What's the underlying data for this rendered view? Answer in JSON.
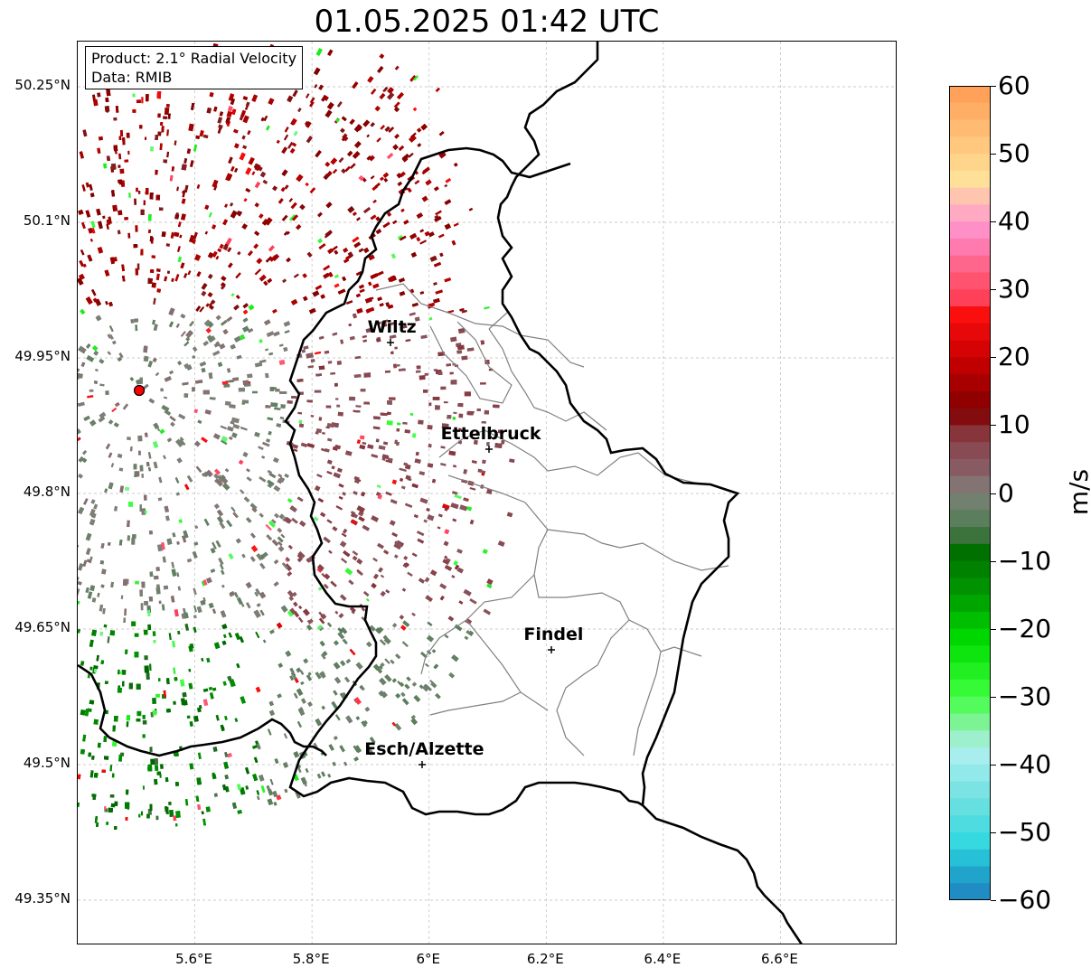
{
  "title": "01.05.2025 01:42 UTC",
  "info": {
    "product": "Product: 2.1° Radial Velocity",
    "data": "Data: RMIB"
  },
  "lat_labels": [
    "50.25°N",
    "50.1°N",
    "49.95°N",
    "49.8°N",
    "49.65°N",
    "49.5°N",
    "49.35°N"
  ],
  "lat_values": [
    50.25,
    50.1,
    49.95,
    49.8,
    49.65,
    49.5,
    49.35
  ],
  "lon_labels": [
    "5.6°E",
    "5.8°E",
    "6°E",
    "6.2°E",
    "6.4°E",
    "6.6°E"
  ],
  "lon_values": [
    5.6,
    5.8,
    6.0,
    6.2,
    6.4,
    6.6
  ],
  "extent": {
    "lon_min": 5.4,
    "lon_max": 6.8,
    "lat_min": 49.3,
    "lat_max": 50.3
  },
  "radar_site": {
    "lon": 5.505,
    "lat": 49.914
  },
  "cities": [
    {
      "name": "Wiltz",
      "lon": 5.935,
      "lat": 49.966
    },
    {
      "name": "Ettelbruck",
      "lon": 6.104,
      "lat": 49.848
    },
    {
      "name": "Findel",
      "lon": 6.211,
      "lat": 49.626
    },
    {
      "name": "Esch/Alzette",
      "lon": 5.99,
      "lat": 49.499
    }
  ],
  "colorbar": {
    "unit": "m/s",
    "ticks": [
      "60",
      "50",
      "40",
      "30",
      "20",
      "10",
      "0",
      "−10",
      "−20",
      "−30",
      "−40",
      "−50",
      "−60"
    ],
    "min": -60,
    "max": 60,
    "stops": [
      {
        "v": 60,
        "c": "#ff9a52"
      },
      {
        "v": 52,
        "c": "#ffc47a"
      },
      {
        "v": 46,
        "c": "#ffe199"
      },
      {
        "v": 42,
        "c": "#ffb0c0"
      },
      {
        "v": 38,
        "c": "#ff88c8"
      },
      {
        "v": 33,
        "c": "#ff6080"
      },
      {
        "v": 28,
        "c": "#ff3a52"
      },
      {
        "v": 27,
        "c": "#ff1010"
      },
      {
        "v": 20,
        "c": "#cc0000"
      },
      {
        "v": 12,
        "c": "#800000"
      },
      {
        "v": 8,
        "c": "#884048"
      },
      {
        "v": 3,
        "c": "#886068"
      },
      {
        "v": 0,
        "c": "#80807a"
      },
      {
        "v": -3,
        "c": "#5f8060"
      },
      {
        "v": -6,
        "c": "#507850"
      },
      {
        "v": -7,
        "c": "#006400"
      },
      {
        "v": -15,
        "c": "#009a00"
      },
      {
        "v": -22,
        "c": "#00dd00"
      },
      {
        "v": -30,
        "c": "#40ff40"
      },
      {
        "v": -35,
        "c": "#90f0b0"
      },
      {
        "v": -38,
        "c": "#b0f0f0"
      },
      {
        "v": -45,
        "c": "#70e0e0"
      },
      {
        "v": -52,
        "c": "#30d8e0"
      },
      {
        "v": -55,
        "c": "#20b0d0"
      },
      {
        "v": -60,
        "c": "#2080c0"
      }
    ]
  }
}
